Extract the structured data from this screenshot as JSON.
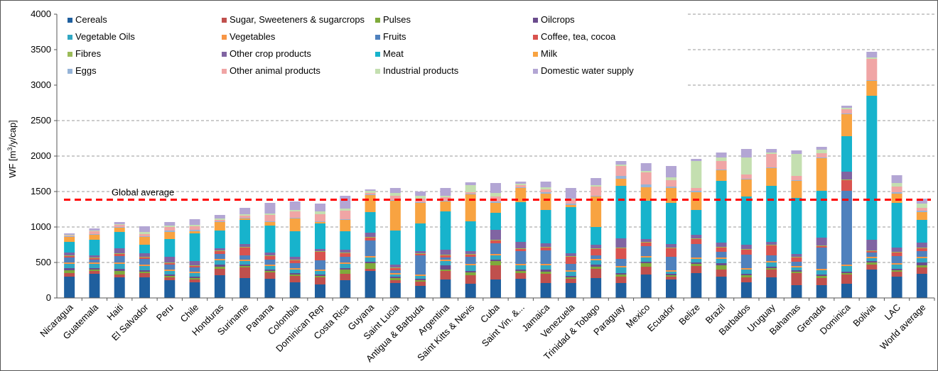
{
  "chart_data": {
    "type": "bar",
    "stacked": true,
    "title": "",
    "xlabel": "",
    "ylabel": "WF [m³/y/cap]",
    "ylabel_parts": [
      "WF [m",
      "3",
      "/y/cap]"
    ],
    "ylim": [
      0,
      4000
    ],
    "yticks": [
      0,
      500,
      1000,
      1500,
      2000,
      2500,
      3000,
      3500,
      4000
    ],
    "grid": "horizontal dashed",
    "legend": "top-left, inside",
    "reference_line": {
      "label": "Global average",
      "value": 1385,
      "color": "#ff0000"
    },
    "categories": [
      "Nicaragua",
      "Guatemala",
      "Haiti",
      "El Salvador",
      "Peru",
      "Chile",
      "Honduras",
      "Suriname",
      "Panama",
      "Colombia",
      "Dominican Rep",
      "Costa Rica",
      "Guyana",
      "Saint Lucia",
      "Antigua & Barbuda",
      "Argentina",
      "Saint Kitts & Nevis",
      "Cuba",
      "Saint Vin. &...",
      "Jamaica",
      "Venezuela",
      "Trinidad & Tobago",
      "Paraguay",
      "Mexico",
      "Ecuador",
      "Belize",
      "Brazil",
      "Barbados",
      "Uruguay",
      "Bahamas",
      "Grenada",
      "Dominica",
      "Bolivia",
      "LAC",
      "World average"
    ],
    "series": [
      {
        "name": "Cereals",
        "color": "#1f5f9e",
        "values": [
          300,
          340,
          290,
          290,
          250,
          220,
          320,
          280,
          270,
          220,
          190,
          250,
          380,
          210,
          170,
          260,
          200,
          260,
          270,
          210,
          210,
          280,
          210,
          330,
          260,
          350,
          300,
          220,
          290,
          180,
          180,
          200,
          400,
          300,
          340
        ]
      },
      {
        "name": "Sugar, Sweeteners &  sugarcrops",
        "color": "#c0504d",
        "values": [
          50,
          40,
          40,
          60,
          40,
          40,
          90,
          150,
          90,
          90,
          100,
          90,
          30,
          40,
          60,
          120,
          120,
          200,
          80,
          130,
          60,
          130,
          90,
          110,
          40,
          100,
          100,
          70,
          110,
          170,
          100,
          130,
          70,
          70,
          90
        ]
      },
      {
        "name": "Pulses",
        "color": "#7faa3b",
        "values": [
          40,
          20,
          50,
          20,
          20,
          20,
          30,
          20,
          20,
          20,
          20,
          60,
          80,
          30,
          20,
          20,
          40,
          60,
          30,
          30,
          20,
          30,
          30,
          50,
          20,
          30,
          60,
          30,
          20,
          20,
          30,
          20,
          30,
          20,
          30
        ]
      },
      {
        "name": "Oilcrops",
        "color": "#6a4b8c",
        "values": [
          30,
          20,
          30,
          20,
          20,
          20,
          30,
          20,
          20,
          20,
          20,
          20,
          20,
          20,
          20,
          60,
          20,
          20,
          20,
          30,
          20,
          30,
          20,
          20,
          20,
          20,
          30,
          20,
          20,
          20,
          20,
          20,
          20,
          20,
          40
        ]
      },
      {
        "name": "Vegetable Oils",
        "color": "#31a7c2",
        "values": [
          60,
          60,
          70,
          60,
          50,
          50,
          60,
          50,
          50,
          50,
          50,
          60,
          60,
          30,
          40,
          60,
          80,
          60,
          60,
          60,
          60,
          60,
          80,
          60,
          30,
          50,
          60,
          60,
          60,
          40,
          60,
          80,
          40,
          60,
          60
        ]
      },
      {
        "name": "Vegetables",
        "color": "#f79646",
        "values": [
          20,
          20,
          20,
          20,
          20,
          20,
          20,
          20,
          20,
          20,
          20,
          20,
          20,
          20,
          20,
          20,
          20,
          20,
          20,
          20,
          20,
          20,
          20,
          20,
          20,
          20,
          20,
          20,
          20,
          20,
          20,
          20,
          20,
          20,
          20
        ]
      },
      {
        "name": "Fruits",
        "color": "#4f81bd",
        "values": [
          70,
          40,
          90,
          80,
          70,
          60,
          70,
          60,
          70,
          70,
          130,
          80,
          220,
          40,
          270,
          30,
          100,
          150,
          180,
          190,
          90,
          50,
          100,
          140,
          190,
          190,
          80,
          190,
          80,
          60,
          300,
          1040,
          60,
          100,
          80
        ]
      },
      {
        "name": "Coffee, tea, cocoa",
        "color": "#d9534f",
        "values": [
          20,
          20,
          30,
          20,
          20,
          20,
          40,
          110,
          50,
          40,
          120,
          50,
          40,
          30,
          20,
          30,
          30,
          40,
          30,
          40,
          100,
          90,
          150,
          50,
          120,
          70,
          60,
          70,
          140,
          60,
          20,
          150,
          20,
          50,
          40
        ]
      },
      {
        "name": "Fibres",
        "color": "#9bbb59",
        "values": [
          10,
          10,
          10,
          10,
          10,
          10,
          10,
          10,
          10,
          10,
          10,
          10,
          10,
          10,
          10,
          10,
          10,
          10,
          10,
          10,
          10,
          10,
          10,
          10,
          10,
          10,
          10,
          10,
          10,
          10,
          10,
          10,
          10,
          10,
          10
        ]
      },
      {
        "name": "Other crop products",
        "color": "#8064a2",
        "values": [
          40,
          30,
          70,
          50,
          80,
          60,
          30,
          40,
          40,
          40,
          30,
          40,
          60,
          40,
          30,
          70,
          40,
          140,
          90,
          50,
          40,
          50,
          130,
          40,
          50,
          50,
          60,
          60,
          40,
          40,
          110,
          110,
          150,
          60,
          70
        ]
      },
      {
        "name": "Meat",
        "color": "#17b3cc",
        "values": [
          150,
          220,
          230,
          120,
          250,
          390,
          250,
          340,
          380,
          360,
          360,
          260,
          290,
          480,
          390,
          540,
          420,
          240,
          560,
          470,
          650,
          250,
          740,
          540,
          580,
          350,
          870,
          680,
          790,
          790,
          660,
          500,
          2030,
          630,
          320
        ]
      },
      {
        "name": "Milk",
        "color": "#f8a341",
        "values": [
          70,
          70,
          60,
          110,
          100,
          30,
          120,
          20,
          50,
          180,
          20,
          160,
          240,
          420,
          290,
          140,
          380,
          140,
          200,
          230,
          30,
          430,
          100,
          190,
          210,
          250,
          150,
          240,
          250,
          240,
          460,
          310,
          210,
          130,
          110
        ]
      },
      {
        "name": "Eggs",
        "color": "#95b3d7",
        "values": [
          10,
          10,
          10,
          10,
          20,
          20,
          10,
          10,
          10,
          10,
          10,
          10,
          10,
          10,
          10,
          10,
          10,
          20,
          10,
          20,
          20,
          10,
          40,
          40,
          20,
          20,
          10,
          10,
          10,
          10,
          10,
          10,
          10,
          20,
          20
        ]
      },
      {
        "name": "Other animal products",
        "color": "#f0a5a5",
        "values": [
          10,
          40,
          30,
          30,
          50,
          50,
          20,
          30,
          90,
          90,
          100,
          120,
          20,
          60,
          50,
          50,
          20,
          70,
          30,
          40,
          60,
          130,
          140,
          170,
          90,
          40,
          120,
          60,
          190,
          60,
          60,
          60,
          300,
          80,
          40
        ]
      },
      {
        "name": "Industrial products",
        "color": "#c4dfb0",
        "values": [
          10,
          10,
          10,
          30,
          20,
          20,
          20,
          20,
          20,
          20,
          40,
          30,
          30,
          40,
          40,
          20,
          100,
          50,
          20,
          30,
          10,
          20,
          20,
          20,
          40,
          380,
          50,
          240,
          20,
          310,
          50,
          20,
          20,
          50,
          60
        ]
      },
      {
        "name": "Domestic water supply",
        "color": "#b3a6d4",
        "values": [
          20,
          30,
          30,
          80,
          50,
          80,
          50,
          90,
          150,
          120,
          110,
          180,
          20,
          70,
          60,
          110,
          40,
          140,
          30,
          80,
          150,
          100,
          50,
          110,
          160,
          30,
          70,
          120,
          50,
          50,
          40,
          30,
          80,
          110,
          70
        ]
      }
    ]
  }
}
